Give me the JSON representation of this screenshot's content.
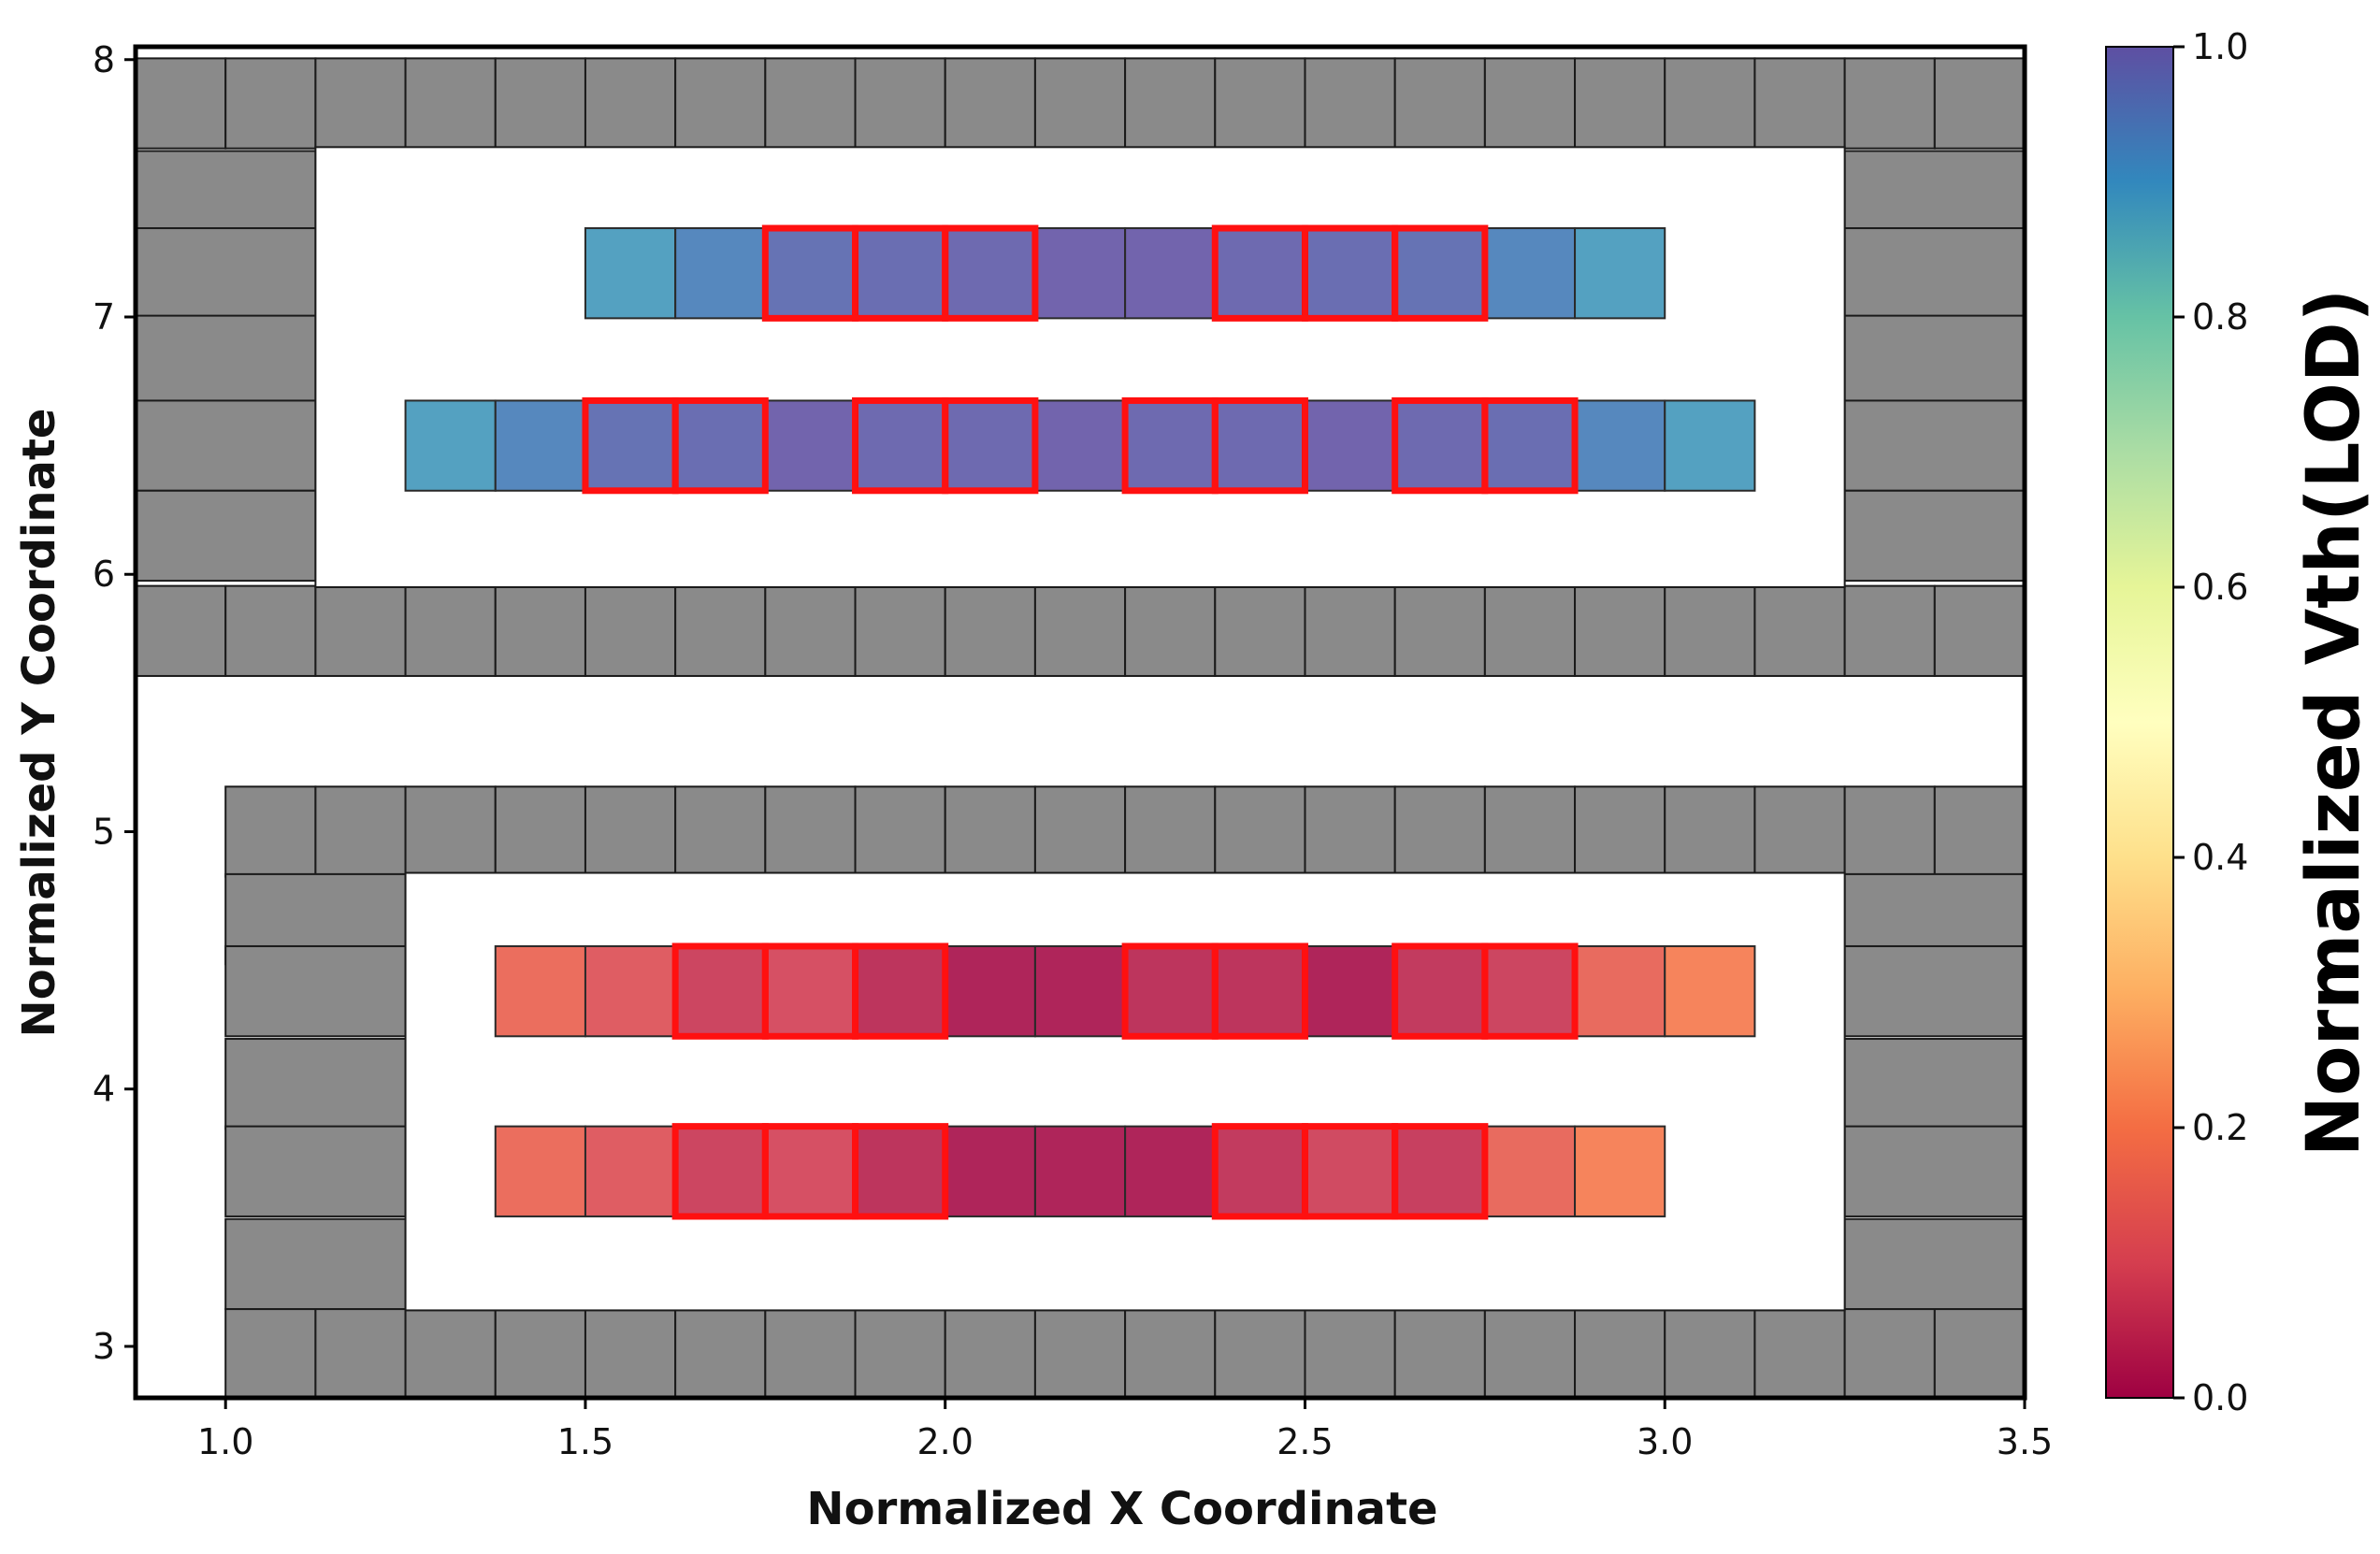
{
  "chart_data": {
    "type": "heatmap",
    "xlabel": "Normalized X Coordinate",
    "ylabel": "Normalized Y Coordinate",
    "colorbar_label": "Normalized Vth(LOD)",
    "colormap": "Spectral",
    "xlim": [
      0.875,
      3.5
    ],
    "ylim": [
      2.8,
      8.05
    ],
    "xticks": [
      {
        "value": 1.0,
        "label": "1.0"
      },
      {
        "value": 1.5,
        "label": "1.5"
      },
      {
        "value": 2.0,
        "label": "2.0"
      },
      {
        "value": 2.5,
        "label": "2.5"
      },
      {
        "value": 3.0,
        "label": "3.0"
      },
      {
        "value": 3.5,
        "label": "3.5"
      }
    ],
    "yticks": [
      {
        "value": 3,
        "label": "3"
      },
      {
        "value": 4,
        "label": "4"
      },
      {
        "value": 5,
        "label": "5"
      },
      {
        "value": 6,
        "label": "6"
      },
      {
        "value": 7,
        "label": "7"
      },
      {
        "value": 8,
        "label": "8"
      }
    ],
    "colorbar_ticks": [
      {
        "value": 0.0,
        "label": "0.0"
      },
      {
        "value": 0.2,
        "label": "0.2"
      },
      {
        "value": 0.4,
        "label": "0.4"
      },
      {
        "value": 0.6,
        "label": "0.6"
      },
      {
        "value": 0.8,
        "label": "0.8"
      },
      {
        "value": 1.0,
        "label": "1.0"
      }
    ],
    "cell_size": [
      0.125,
      0.35
    ],
    "dummy_color": "#8a8a8a",
    "highlight_color": "#ff1010",
    "rows": [
      {
        "y": 7.17,
        "x_start": 1.5,
        "values": [
          0.88,
          0.93,
          0.97,
          0.98,
          0.99,
          1.0,
          1.0,
          0.99,
          0.98,
          0.97,
          0.93,
          0.88
        ]
      },
      {
        "y": 6.5,
        "x_start": 1.25,
        "values": [
          0.88,
          0.93,
          0.97,
          0.98,
          1.0,
          0.99,
          0.99,
          1.0,
          0.99,
          0.99,
          1.0,
          0.99,
          0.98,
          0.93,
          0.88
        ]
      },
      {
        "y": 4.38,
        "x_start": 1.375,
        "values": [
          0.16,
          0.12,
          0.07,
          0.09,
          0.04,
          0.01,
          0.01,
          0.04,
          0.04,
          0.01,
          0.05,
          0.07,
          0.15,
          0.21
        ]
      },
      {
        "y": 3.68,
        "x_start": 1.375,
        "values": [
          0.16,
          0.12,
          0.07,
          0.09,
          0.04,
          0.01,
          0.01,
          0.01,
          0.05,
          0.08,
          0.06,
          0.15,
          0.21
        ]
      }
    ],
    "highlight_groups": [
      {
        "y": 7.17,
        "x_start": 1.75,
        "count": 3
      },
      {
        "y": 7.17,
        "x_start": 2.375,
        "count": 3
      },
      {
        "y": 6.5,
        "x_start": 1.5,
        "count": 2
      },
      {
        "y": 6.5,
        "x_start": 1.875,
        "count": 2
      },
      {
        "y": 6.5,
        "x_start": 2.25,
        "count": 2
      },
      {
        "y": 6.5,
        "x_start": 2.625,
        "count": 2
      },
      {
        "y": 4.38,
        "x_start": 1.625,
        "count": 3
      },
      {
        "y": 4.38,
        "x_start": 2.25,
        "count": 2
      },
      {
        "y": 4.38,
        "x_start": 2.625,
        "count": 2
      },
      {
        "y": 3.68,
        "x_start": 1.625,
        "count": 3
      },
      {
        "y": 3.68,
        "x_start": 2.375,
        "count": 3
      }
    ],
    "dummy_rows": [
      {
        "y": 7.83,
        "x_start": 0.875,
        "count": 21
      },
      {
        "y": 5.78,
        "x_start": 0.875,
        "count": 21
      },
      {
        "y": 5.0,
        "x_start": 1.0,
        "count": 20
      },
      {
        "y": 2.97,
        "x_start": 1.0,
        "count": 20
      }
    ],
    "dummy_columns": [
      {
        "x_start": 0.875,
        "y_values": [
          7.47,
          7.17,
          6.83,
          6.5,
          6.15
        ],
        "width_cells": 2
      },
      {
        "x_start": 3.25,
        "y_values": [
          7.47,
          7.17,
          6.83,
          6.5,
          6.15
        ],
        "width_cells": 2
      },
      {
        "x_start": 1.0,
        "y_values": [
          4.66,
          4.38,
          4.02,
          3.68,
          3.32
        ],
        "width_cells": 2
      },
      {
        "x_start": 3.25,
        "y_values": [
          4.66,
          4.38,
          4.02,
          3.68,
          3.32
        ],
        "width_cells": 2
      }
    ],
    "active_regions": [
      {
        "x0": 1.125,
        "x1": 3.25,
        "y0": 5.95,
        "y1": 7.66
      },
      {
        "x0": 1.25,
        "x1": 3.25,
        "y0": 3.14,
        "y1": 4.84
      }
    ]
  }
}
